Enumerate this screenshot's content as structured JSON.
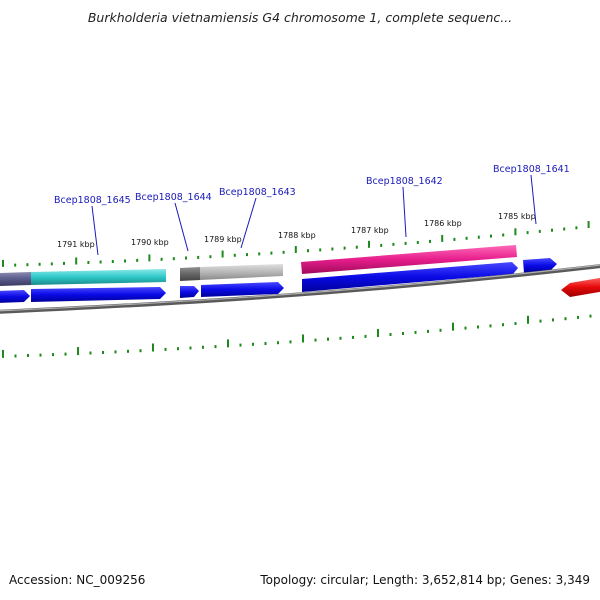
{
  "header": {
    "title": "Burkholderia vietnamiensis G4 chromosome 1, complete sequenc..."
  },
  "footer": {
    "accession": "Accession: NC_009256",
    "summary": "Topology: circular; Length: 3,652,814 bp; Genes: 3,349"
  },
  "ruler": {
    "labels": [
      "1791 kbp",
      "1790 kbp",
      "1789 kbp",
      "1788 kbp",
      "1787 kbp",
      "1786 kbp",
      "1785 kbp"
    ]
  },
  "genes": {
    "labels": [
      "Bcep1808_1645",
      "Bcep1808_1644",
      "Bcep1808_1643",
      "Bcep1808_1642",
      "Bcep1808_1641"
    ]
  },
  "colors": {
    "tick": "#1e8a1e",
    "backbone": "#808080",
    "cds": "#0a0ae6",
    "gene_cyan": "#2ec8c8",
    "gene_gray": "#b4b4b4",
    "gene_pink": "#e61e8c",
    "gene_dark": "#5a5a8c",
    "gene_red": "#e60a0a",
    "label": "#1a1ab8"
  }
}
